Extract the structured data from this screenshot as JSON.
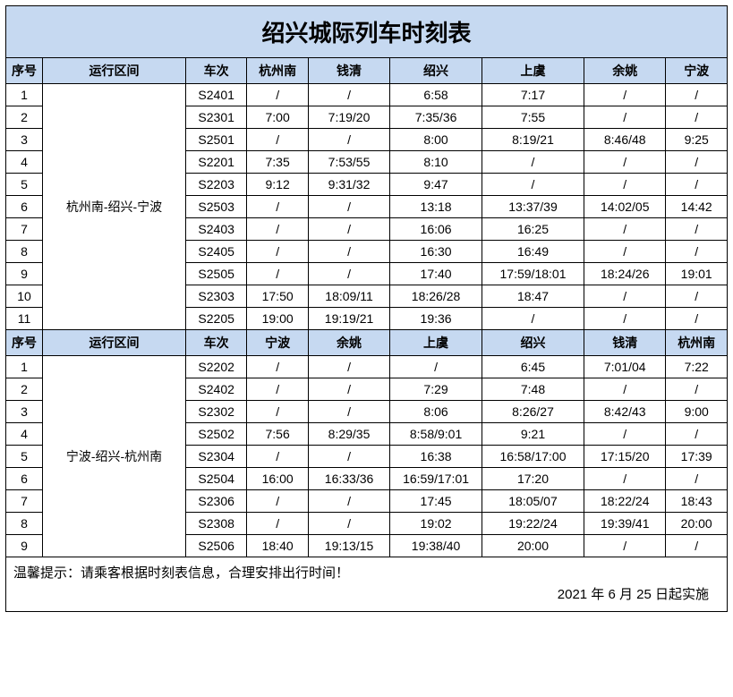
{
  "title": "绍兴城际列车时刻表",
  "headers1": {
    "seq": "序号",
    "route": "运行区间",
    "train": "车次",
    "s1": "杭州南",
    "s2": "钱清",
    "s3": "绍兴",
    "s4": "上虞",
    "s5": "余姚",
    "s6": "宁波"
  },
  "route1": "杭州南-绍兴-宁波",
  "rows1": [
    {
      "seq": "1",
      "train": "S2401",
      "s1": "/",
      "s2": "/",
      "s3": "6:58",
      "s4": "7:17",
      "s5": "/",
      "s6": "/"
    },
    {
      "seq": "2",
      "train": "S2301",
      "s1": "7:00",
      "s2": "7:19/20",
      "s3": "7:35/36",
      "s4": "7:55",
      "s5": "/",
      "s6": "/"
    },
    {
      "seq": "3",
      "train": "S2501",
      "s1": "/",
      "s2": "/",
      "s3": "8:00",
      "s4": "8:19/21",
      "s5": "8:46/48",
      "s6": "9:25"
    },
    {
      "seq": "4",
      "train": "S2201",
      "s1": "7:35",
      "s2": "7:53/55",
      "s3": "8:10",
      "s4": "/",
      "s5": "/",
      "s6": "/"
    },
    {
      "seq": "5",
      "train": "S2203",
      "s1": "9:12",
      "s2": "9:31/32",
      "s3": "9:47",
      "s4": "/",
      "s5": "/",
      "s6": "/"
    },
    {
      "seq": "6",
      "train": "S2503",
      "s1": "/",
      "s2": "/",
      "s3": "13:18",
      "s4": "13:37/39",
      "s5": "14:02/05",
      "s6": "14:42"
    },
    {
      "seq": "7",
      "train": "S2403",
      "s1": "/",
      "s2": "/",
      "s3": "16:06",
      "s4": "16:25",
      "s5": "/",
      "s6": "/"
    },
    {
      "seq": "8",
      "train": "S2405",
      "s1": "/",
      "s2": "/",
      "s3": "16:30",
      "s4": "16:49",
      "s5": "/",
      "s6": "/"
    },
    {
      "seq": "9",
      "train": "S2505",
      "s1": "/",
      "s2": "/",
      "s3": "17:40",
      "s4": "17:59/18:01",
      "s5": "18:24/26",
      "s6": "19:01"
    },
    {
      "seq": "10",
      "train": "S2303",
      "s1": "17:50",
      "s2": "18:09/11",
      "s3": "18:26/28",
      "s4": "18:47",
      "s5": "/",
      "s6": "/"
    },
    {
      "seq": "11",
      "train": "S2205",
      "s1": "19:00",
      "s2": "19:19/21",
      "s3": "19:36",
      "s4": "/",
      "s5": "/",
      "s6": "/"
    }
  ],
  "headers2": {
    "seq": "序号",
    "route": "运行区间",
    "train": "车次",
    "s1": "宁波",
    "s2": "余姚",
    "s3": "上虞",
    "s4": "绍兴",
    "s5": "钱清",
    "s6": "杭州南"
  },
  "route2": "宁波-绍兴-杭州南",
  "rows2": [
    {
      "seq": "1",
      "train": "S2202",
      "s1": "/",
      "s2": "/",
      "s3": "/",
      "s4": "6:45",
      "s5": "7:01/04",
      "s6": "7:22"
    },
    {
      "seq": "2",
      "train": "S2402",
      "s1": "/",
      "s2": "/",
      "s3": "7:29",
      "s4": "7:48",
      "s5": "/",
      "s6": "/"
    },
    {
      "seq": "3",
      "train": "S2302",
      "s1": "/",
      "s2": "/",
      "s3": "8:06",
      "s4": "8:26/27",
      "s5": "8:42/43",
      "s6": "9:00"
    },
    {
      "seq": "4",
      "train": "S2502",
      "s1": "7:56",
      "s2": "8:29/35",
      "s3": "8:58/9:01",
      "s4": "9:21",
      "s5": "/",
      "s6": "/"
    },
    {
      "seq": "5",
      "train": "S2304",
      "s1": "/",
      "s2": "/",
      "s3": "16:38",
      "s4": "16:58/17:00",
      "s5": "17:15/20",
      "s6": "17:39"
    },
    {
      "seq": "6",
      "train": "S2504",
      "s1": "16:00",
      "s2": "16:33/36",
      "s3": "16:59/17:01",
      "s4": "17:20",
      "s5": "/",
      "s6": "/"
    },
    {
      "seq": "7",
      "train": "S2306",
      "s1": "/",
      "s2": "/",
      "s3": "17:45",
      "s4": "18:05/07",
      "s5": "18:22/24",
      "s6": "18:43"
    },
    {
      "seq": "8",
      "train": "S2308",
      "s1": "/",
      "s2": "/",
      "s3": "19:02",
      "s4": "19:22/24",
      "s5": "19:39/41",
      "s6": "20:00"
    },
    {
      "seq": "9",
      "train": "S2506",
      "s1": "18:40",
      "s2": "19:13/15",
      "s3": "19:38/40",
      "s4": "20:00",
      "s5": "/",
      "s6": "/"
    }
  ],
  "footer_note": "温馨提示：请乘客根据时刻表信息，合理安排出行时间！",
  "footer_date": "2021 年 6 月 25 日起实施"
}
